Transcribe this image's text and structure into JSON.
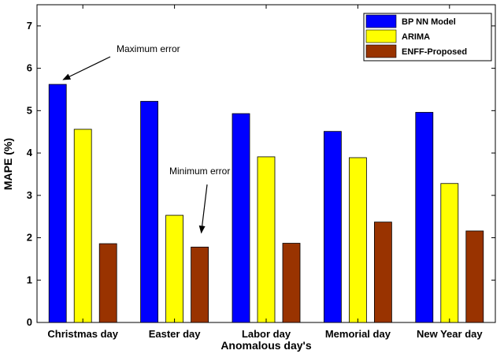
{
  "chart_data": {
    "type": "bar",
    "title": "",
    "xlabel": "Anomalous day's",
    "ylabel": "MAPE (%)",
    "categories": [
      "Christmas day",
      "Easter day",
      "Labor day",
      "Memorial day",
      "New Year day"
    ],
    "series": [
      {
        "name": "BP NN Model",
        "color": "#0000ff",
        "values": [
          5.62,
          5.22,
          4.93,
          4.51,
          4.96
        ]
      },
      {
        "name": "ARIMA",
        "color": "#ffff00",
        "values": [
          4.56,
          2.53,
          3.91,
          3.89,
          3.28
        ]
      },
      {
        "name": "ENFF-Proposed",
        "color": "#993300",
        "values": [
          1.86,
          1.78,
          1.87,
          2.37,
          2.16
        ]
      }
    ],
    "ylim": [
      0,
      7.5
    ],
    "yticks": [
      0,
      1,
      2,
      3,
      4,
      5,
      6,
      7
    ],
    "grid": false,
    "legend_position": "top-right",
    "annotations": [
      {
        "text": "Maximum error",
        "target_category": "Christmas day",
        "target_series": "BP NN Model"
      },
      {
        "text": "Minimum error",
        "target_category": "Easter day",
        "target_series": "ENFF-Proposed"
      }
    ]
  }
}
